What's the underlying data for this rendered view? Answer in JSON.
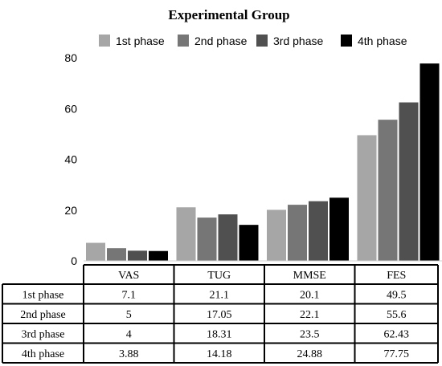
{
  "chart_data": {
    "type": "bar",
    "title": "Experimental Group",
    "xlabel": "",
    "ylabel": "",
    "categories": [
      "VAS",
      "TUG",
      "MMSE",
      "FES"
    ],
    "ylim": [
      0,
      80
    ],
    "yticks": [
      0,
      20,
      40,
      60,
      80
    ],
    "grid": false,
    "legend_position": "top",
    "series": [
      {
        "name": "1st phase",
        "color": "#a6a6a6",
        "values": [
          7.1,
          21.1,
          20.1,
          49.5
        ]
      },
      {
        "name": "2nd phase",
        "color": "#767676",
        "values": [
          5,
          17.05,
          22.1,
          55.6
        ]
      },
      {
        "name": "3rd phase",
        "color": "#505050",
        "values": [
          4,
          18.31,
          23.5,
          62.43
        ]
      },
      {
        "name": "4th phase",
        "color": "#000000",
        "values": [
          3.88,
          14.18,
          24.88,
          77.75
        ]
      }
    ],
    "table": {
      "rows": [
        {
          "label": "1st phase",
          "cells": [
            "7.1",
            "21.1",
            "20.1",
            "49.5"
          ]
        },
        {
          "label": "2nd phase",
          "cells": [
            "5",
            "17.05",
            "22.1",
            "55.6"
          ]
        },
        {
          "label": "3rd phase",
          "cells": [
            "4",
            "18.31",
            "23.5",
            "62.43"
          ]
        },
        {
          "label": "4th phase",
          "cells": [
            "3.88",
            "14.18",
            "24.88",
            "77.75"
          ]
        }
      ]
    }
  }
}
